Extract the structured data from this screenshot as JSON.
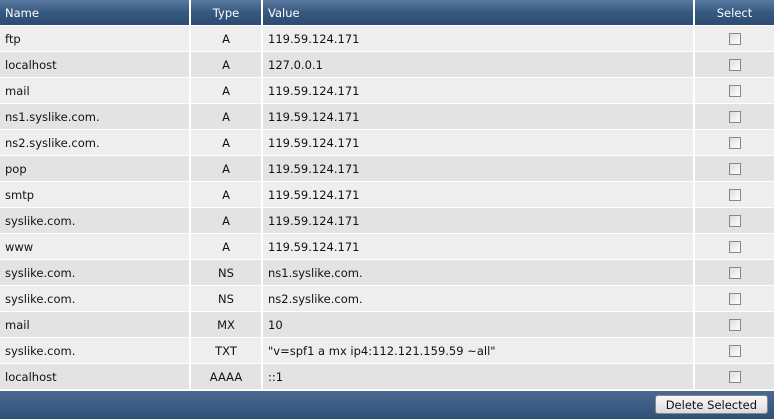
{
  "columns": {
    "name": "Name",
    "type": "Type",
    "value": "Value",
    "select": "Select"
  },
  "rows": [
    {
      "name": "ftp",
      "type": "A",
      "value": "119.59.124.171"
    },
    {
      "name": "localhost",
      "type": "A",
      "value": "127.0.0.1"
    },
    {
      "name": "mail",
      "type": "A",
      "value": "119.59.124.171"
    },
    {
      "name": "ns1.syslike.com.",
      "type": "A",
      "value": "119.59.124.171"
    },
    {
      "name": "ns2.syslike.com.",
      "type": "A",
      "value": "119.59.124.171"
    },
    {
      "name": "pop",
      "type": "A",
      "value": "119.59.124.171"
    },
    {
      "name": "smtp",
      "type": "A",
      "value": "119.59.124.171"
    },
    {
      "name": "syslike.com.",
      "type": "A",
      "value": "119.59.124.171"
    },
    {
      "name": "www",
      "type": "A",
      "value": "119.59.124.171"
    },
    {
      "name": "syslike.com.",
      "type": "NS",
      "value": "ns1.syslike.com."
    },
    {
      "name": "syslike.com.",
      "type": "NS",
      "value": "ns2.syslike.com."
    },
    {
      "name": "mail",
      "type": "MX",
      "value": "10"
    },
    {
      "name": "syslike.com.",
      "type": "TXT",
      "value": "\"v=spf1 a mx ip4:112.121.159.59 ~all\""
    },
    {
      "name": "localhost",
      "type": "AAAA",
      "value": "::1"
    }
  ],
  "footer": {
    "delete_label": "Delete Selected"
  }
}
